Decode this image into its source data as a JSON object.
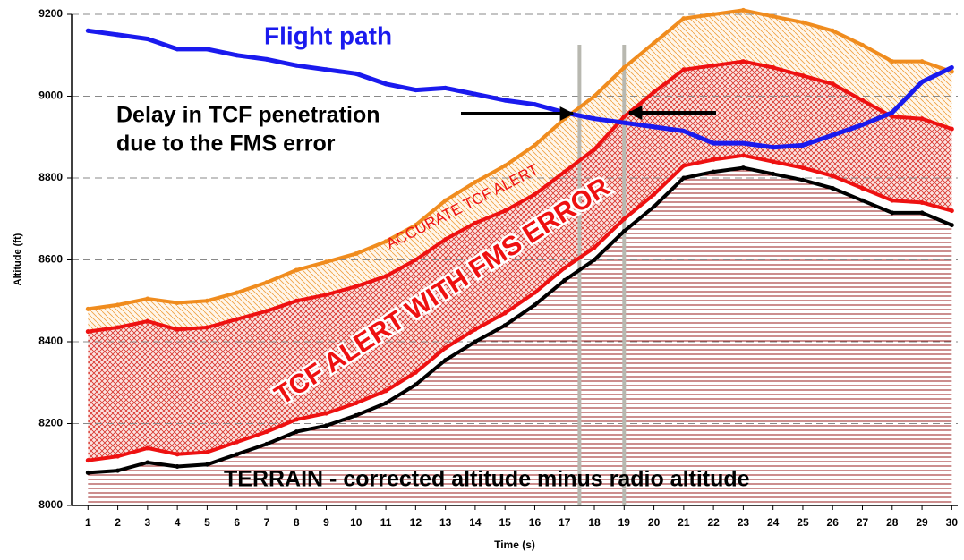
{
  "chart_data": {
    "type": "line",
    "x": [
      1,
      2,
      3,
      4,
      5,
      6,
      7,
      8,
      9,
      10,
      11,
      12,
      13,
      14,
      15,
      16,
      17,
      18,
      19,
      20,
      21,
      22,
      23,
      24,
      25,
      26,
      27,
      28,
      29,
      30
    ],
    "xlim": [
      0.45,
      30.2
    ],
    "xticks": [
      1,
      2,
      3,
      4,
      5,
      6,
      7,
      8,
      9,
      10,
      11,
      12,
      13,
      14,
      15,
      16,
      17,
      18,
      19,
      20,
      21,
      22,
      23,
      24,
      25,
      26,
      27,
      28,
      29,
      30
    ],
    "ylim": [
      8000,
      9200
    ],
    "yticks": [
      8000,
      8200,
      8400,
      8600,
      8800,
      9000,
      9200
    ],
    "grid": true,
    "xlabel": "Time (s)",
    "ylabel": "Altitude (ft)",
    "vlines": [
      17.5,
      19
    ],
    "series": [
      {
        "color": "#000000",
        "values": [
          8080,
          8085,
          8105,
          8095,
          8100,
          8125,
          8150,
          8180,
          8195,
          8220,
          8250,
          8295,
          8355,
          8400,
          8440,
          8490,
          8550,
          8600,
          8670,
          8730,
          8800,
          8815,
          8825,
          8810,
          8795,
          8775,
          8745,
          8715,
          8715,
          8685
        ]
      },
      {
        "color": "#ee1111",
        "values": [
          8110,
          8120,
          8140,
          8125,
          8130,
          8155,
          8180,
          8210,
          8225,
          8250,
          8280,
          8325,
          8385,
          8430,
          8470,
          8520,
          8580,
          8630,
          8700,
          8760,
          8830,
          8845,
          8855,
          8840,
          8825,
          8805,
          8775,
          8745,
          8740,
          8720
        ]
      },
      {
        "color": "#ee1111",
        "values": [
          8425,
          8435,
          8450,
          8430,
          8435,
          8455,
          8475,
          8500,
          8515,
          8535,
          8560,
          8600,
          8650,
          8690,
          8720,
          8760,
          8815,
          8870,
          8950,
          9010,
          9065,
          9075,
          9085,
          9070,
          9050,
          9030,
          8990,
          8950,
          8945,
          8920
        ]
      },
      {
        "color": "#f08c1e",
        "values": [
          8480,
          8490,
          8505,
          8495,
          8500,
          8520,
          8545,
          8575,
          8595,
          8615,
          8645,
          8685,
          8745,
          8790,
          8830,
          8880,
          8945,
          9000,
          9070,
          9130,
          9190,
          9200,
          9210,
          9195,
          9180,
          9160,
          9125,
          9085,
          9085,
          9060
        ]
      },
      {
        "name": "Flight path",
        "color": "#1a1aee",
        "values": [
          9160,
          9150,
          9140,
          9115,
          9115,
          9100,
          9090,
          9075,
          9065,
          9055,
          9030,
          9015,
          9020,
          9005,
          8990,
          8980,
          8960,
          8945,
          8935,
          8925,
          8915,
          8885,
          8885,
          8875,
          8880,
          8905,
          8930,
          8960,
          9035,
          9070
        ]
      }
    ],
    "annotations": [
      "Delay in TCF penetration",
      "due to the FMS error",
      "ACCURATE TCF ALERT",
      "TCF ALERT WITH FMS ERROR",
      "TERRAIN - corrected altitude minus radio altitude"
    ]
  }
}
